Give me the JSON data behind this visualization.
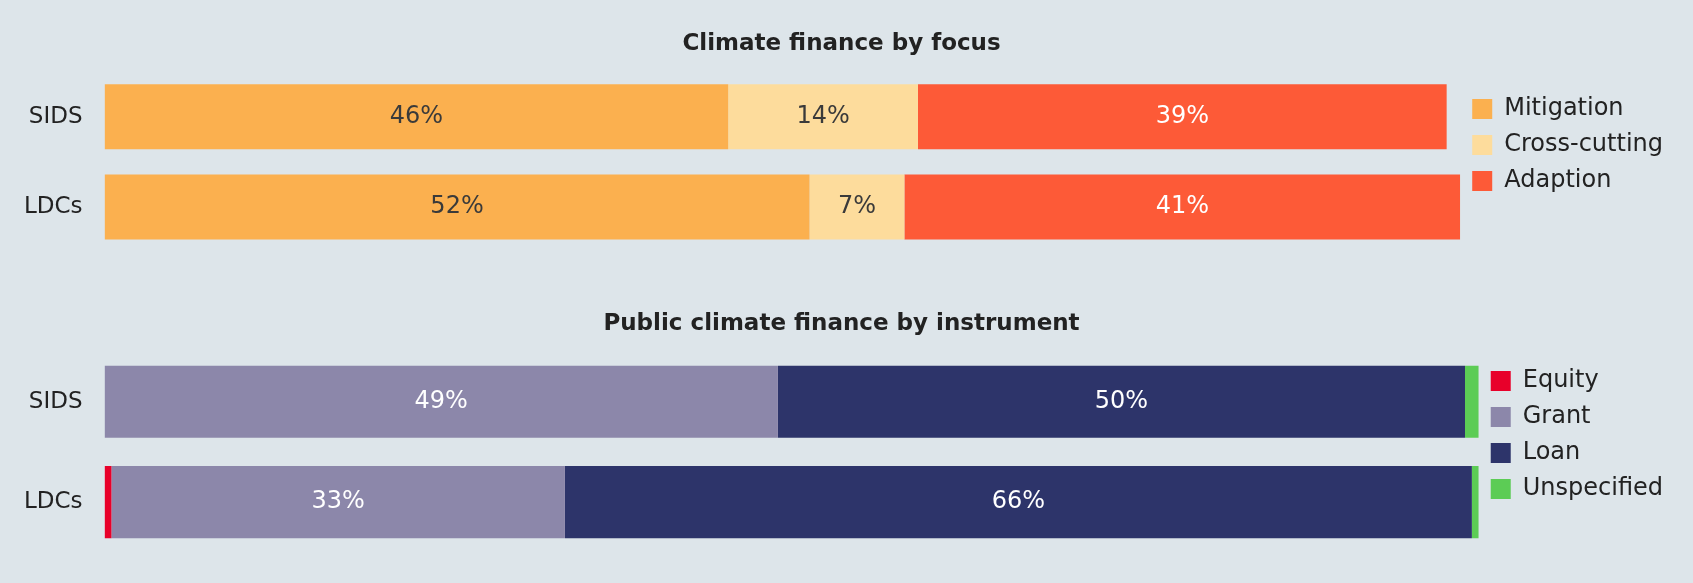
{
  "chart_data": [
    {
      "type": "bar",
      "title": "Climate finance by focus",
      "orientation": "horizontal",
      "stacked": true,
      "legend": "right",
      "categories": [
        "SIDS",
        "LDCs"
      ],
      "series": [
        {
          "name": "Mitigation",
          "color": "#fbb04f",
          "values": [
            46,
            52
          ],
          "value_labels": [
            "46%",
            "52%"
          ]
        },
        {
          "name": "Cross-cutting",
          "color": "#fddc9c",
          "values": [
            14,
            7
          ],
          "value_labels": [
            "14%",
            "7%"
          ]
        },
        {
          "name": "Adaption",
          "color": "#fd5a37",
          "values": [
            39,
            41
          ],
          "value_labels": [
            "39%",
            "41%"
          ]
        }
      ]
    },
    {
      "type": "bar",
      "title": "Public climate finance by instrument",
      "orientation": "horizontal",
      "stacked": true,
      "legend": "right",
      "categories": [
        "SIDS",
        "LDCs"
      ],
      "series": [
        {
          "name": "Equity",
          "color": "#e8002a",
          "values": [
            0,
            0.5
          ],
          "value_labels": [
            null,
            null
          ]
        },
        {
          "name": "Grant",
          "color": "#8c87aa",
          "values": [
            49,
            33
          ],
          "value_labels": [
            "49%",
            "33%"
          ]
        },
        {
          "name": "Loan",
          "color": "#2d346a",
          "values": [
            50,
            66
          ],
          "value_labels": [
            "50%",
            "66%"
          ]
        },
        {
          "name": "Unspecified",
          "color": "#5ccc55",
          "values": [
            1,
            0.5
          ],
          "value_labels": [
            null,
            null
          ]
        }
      ]
    }
  ]
}
